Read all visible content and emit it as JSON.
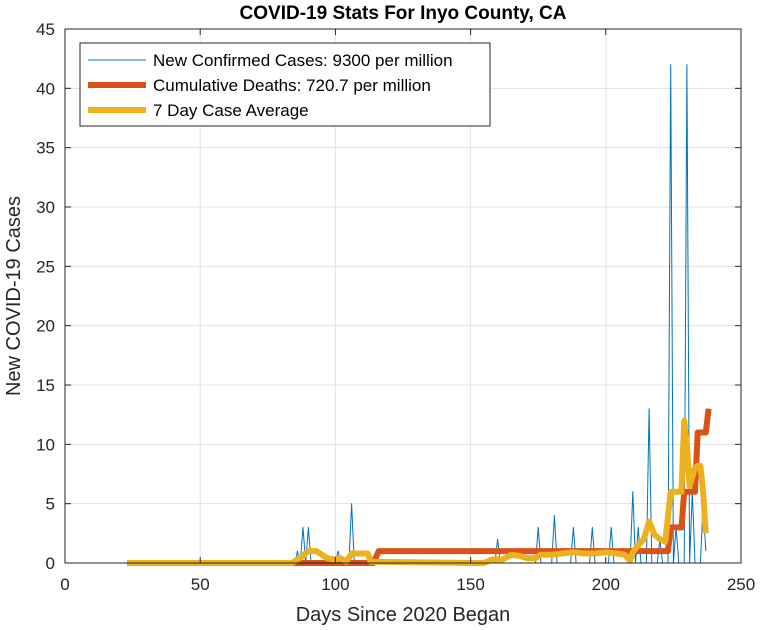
{
  "chart_data": {
    "type": "line",
    "title": "COVID-19 Stats For Inyo County, CA",
    "xlabel": "Days Since 2020 Began",
    "ylabel": "New COVID-19 Cases",
    "xlim": [
      0,
      250
    ],
    "ylim": [
      0,
      45
    ],
    "xticks": [
      0,
      50,
      100,
      150,
      200,
      250
    ],
    "yticks": [
      0,
      5,
      10,
      15,
      20,
      25,
      30,
      35,
      40,
      45
    ],
    "grid": true,
    "legend_position": "top-left",
    "series": [
      {
        "name": "New Confirmed Cases: 9300 per million",
        "color": "#0072BD",
        "style": "thin",
        "points": [
          [
            23,
            0
          ],
          [
            85,
            0
          ],
          [
            86,
            1
          ],
          [
            87,
            0
          ],
          [
            88,
            3
          ],
          [
            89,
            0
          ],
          [
            90,
            3
          ],
          [
            91,
            0
          ],
          [
            100,
            0
          ],
          [
            101,
            1
          ],
          [
            102,
            0
          ],
          [
            105,
            0
          ],
          [
            106,
            5
          ],
          [
            107,
            0
          ],
          [
            140,
            0
          ],
          [
            150,
            0
          ],
          [
            159,
            0
          ],
          [
            160,
            2
          ],
          [
            161,
            0
          ],
          [
            174,
            0
          ],
          [
            175,
            3
          ],
          [
            176,
            0
          ],
          [
            180,
            0
          ],
          [
            181,
            4
          ],
          [
            182,
            0
          ],
          [
            187,
            0
          ],
          [
            188,
            3
          ],
          [
            189,
            0
          ],
          [
            194,
            0
          ],
          [
            195,
            3
          ],
          [
            196,
            0
          ],
          [
            201,
            0
          ],
          [
            202,
            3
          ],
          [
            203,
            0
          ],
          [
            209,
            0
          ],
          [
            210,
            6
          ],
          [
            211,
            0
          ],
          [
            212,
            3
          ],
          [
            213,
            0
          ],
          [
            215,
            0
          ],
          [
            216,
            13
          ],
          [
            217,
            0
          ],
          [
            219,
            0
          ],
          [
            220,
            2
          ],
          [
            221,
            0
          ],
          [
            223,
            0
          ],
          [
            224,
            42
          ],
          [
            225,
            0
          ],
          [
            226,
            3
          ],
          [
            227,
            0
          ],
          [
            229,
            0
          ],
          [
            230,
            42
          ],
          [
            231,
            0
          ],
          [
            232,
            6
          ],
          [
            233,
            0
          ],
          [
            235,
            0
          ],
          [
            236,
            5
          ],
          [
            237,
            1
          ]
        ]
      },
      {
        "name": "Cumulative Deaths: 720.7 per million",
        "color": "#D95319",
        "style": "thick",
        "points": [
          [
            23,
            0
          ],
          [
            114,
            0
          ],
          [
            115,
            0.5
          ],
          [
            116,
            1
          ],
          [
            223,
            1
          ],
          [
            224,
            3
          ],
          [
            228,
            3
          ],
          [
            229,
            6
          ],
          [
            233,
            6
          ],
          [
            234,
            11
          ],
          [
            237,
            11
          ],
          [
            238,
            13
          ]
        ]
      },
      {
        "name": "7 Day Case Average",
        "color": "#EDB120",
        "style": "thick",
        "points": [
          [
            23,
            0
          ],
          [
            84,
            0
          ],
          [
            86,
            0.3
          ],
          [
            88,
            0.6
          ],
          [
            90,
            1
          ],
          [
            93,
            1
          ],
          [
            95,
            0.7
          ],
          [
            97,
            0.4
          ],
          [
            100,
            0.3
          ],
          [
            102,
            0.4
          ],
          [
            104,
            0.1
          ],
          [
            106,
            0.8
          ],
          [
            109,
            0.8
          ],
          [
            112,
            0.8
          ],
          [
            113,
            0.1
          ],
          [
            150,
            0
          ],
          [
            155,
            0
          ],
          [
            158,
            0.3
          ],
          [
            162,
            0.3
          ],
          [
            165,
            0.7
          ],
          [
            168,
            0.6
          ],
          [
            171,
            0.4
          ],
          [
            174,
            0.4
          ],
          [
            176,
            0.7
          ],
          [
            180,
            0.7
          ],
          [
            184,
            0.8
          ],
          [
            188,
            0.9
          ],
          [
            192,
            0.8
          ],
          [
            196,
            0.8
          ],
          [
            200,
            0.9
          ],
          [
            204,
            0.8
          ],
          [
            207,
            0.7
          ],
          [
            209,
            0.2
          ],
          [
            210,
            0.9
          ],
          [
            212,
            1.5
          ],
          [
            214,
            2
          ],
          [
            216,
            3.5
          ],
          [
            218,
            2.4
          ],
          [
            220,
            2
          ],
          [
            222,
            1.8
          ],
          [
            224,
            6
          ],
          [
            226,
            6
          ],
          [
            228,
            6
          ],
          [
            229,
            12
          ],
          [
            230,
            10
          ],
          [
            231,
            6.5
          ],
          [
            233,
            8
          ],
          [
            234,
            8.2
          ],
          [
            235,
            8.2
          ],
          [
            236,
            6
          ],
          [
            237,
            2.5
          ]
        ]
      }
    ]
  }
}
